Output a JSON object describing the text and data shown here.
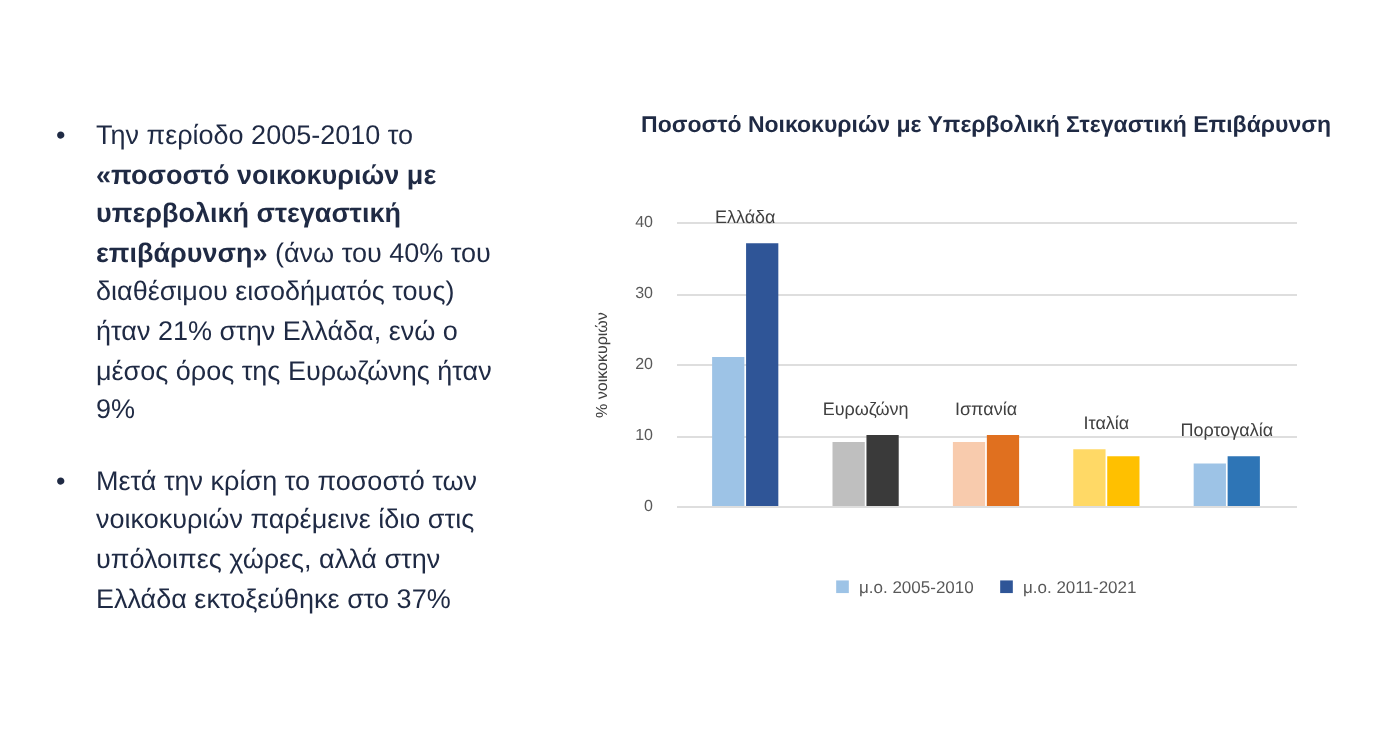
{
  "chart_data": {
    "type": "bar",
    "title": "Ποσοστό Νοικοκυριών με Υπερβολική Στεγαστική Επιβάρυνση",
    "ylabel": "% νοικοκυριών",
    "categories": [
      "Ελλάδα",
      "Ευρωζώνη",
      "Ισπανία",
      "Ιταλία",
      "Πορτογαλία"
    ],
    "series": [
      {
        "name": "μ.ο. 2005-2010",
        "color": "#9dc3e6",
        "colors": [
          "#9dc3e6",
          "#bfbfbf",
          "#f8cbad",
          "#ffd966",
          "#9dc3e6"
        ],
        "values": [
          21,
          9,
          9,
          8,
          6
        ]
      },
      {
        "name": "μ.ο. 2011-2021",
        "color": "#2f5597",
        "colors": [
          "#2f5597",
          "#3a3a3a",
          "#e0701f",
          "#ffc000",
          "#2e75b6"
        ],
        "values": [
          37,
          10,
          10,
          7,
          7
        ]
      }
    ],
    "ylim": [
      0,
      40
    ],
    "yticks": [
      0,
      10,
      20,
      30,
      40
    ],
    "grid": "y",
    "legend": "bottom",
    "annotations": [
      "• Την περίοδο 2005-2010 το «ποσοστό νοικοκυριών με υπερβολική στεγαστική επιβάρυνση» (άνω του 40% του διαθέσιμου εισοδήματός τους) ήταν 21% στην Ελλάδα, ενώ ο μέσος όρος της Ευρωζώνης ήταν 9%",
      "• Μετά την κρίση το ποσοστό των νοικοκυριών παρέμεινε ίδιο στις υπόλοιπες χώρες, αλλά στην Ελλάδα εκτοξεύθηκε στο 37%"
    ]
  }
}
